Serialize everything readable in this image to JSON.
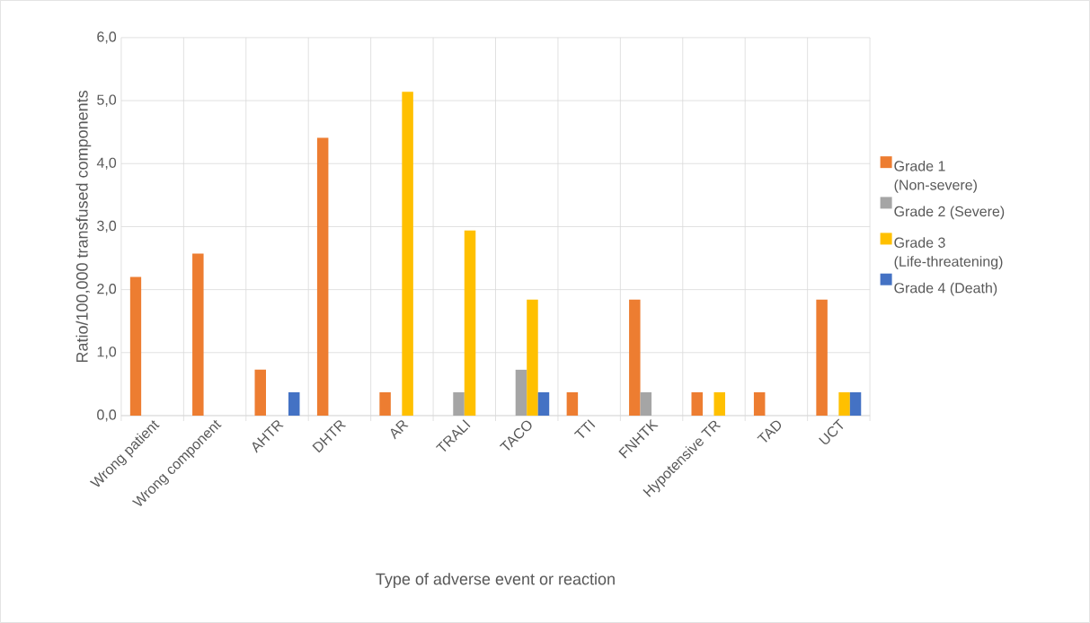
{
  "chart_data": {
    "type": "bar",
    "xlabel": "Type of adverse event or reaction",
    "ylabel": "Ratio/100,000  transfused components",
    "categories": [
      "Wrong patient",
      "Wrong component",
      "AHTR",
      "DHTR",
      "AR",
      "TRALI",
      "TACO",
      "TTI",
      "FNHTK",
      "Hypotensive TR",
      "TAD",
      "UCT"
    ],
    "series": [
      {
        "name": "Grade 1 (Non-severe)",
        "color": "#ed7d31",
        "values": [
          2.2,
          2.57,
          0.73,
          4.41,
          0.37,
          null,
          null,
          0.37,
          1.84,
          0.37,
          0.37,
          1.84
        ]
      },
      {
        "name": "Grade 2 (Severe)",
        "color": "#a5a5a5",
        "values": [
          null,
          null,
          null,
          null,
          null,
          0.37,
          0.73,
          null,
          0.37,
          null,
          null,
          null
        ]
      },
      {
        "name": "Grade 3 (Life-threatening)",
        "color": "#ffc000",
        "values": [
          null,
          null,
          null,
          null,
          5.14,
          2.94,
          1.84,
          null,
          null,
          0.37,
          null,
          0.37
        ]
      },
      {
        "name": "Grade 4 (Death)",
        "color": "#4472c4",
        "values": [
          null,
          null,
          0.37,
          null,
          null,
          null,
          0.37,
          null,
          null,
          null,
          null,
          0.37
        ]
      }
    ],
    "ylim": [
      0,
      6
    ],
    "yticks": [
      {
        "value": 0,
        "label": "0,0"
      },
      {
        "value": 1,
        "label": "1,0"
      },
      {
        "value": 2,
        "label": "2,0"
      },
      {
        "value": 3,
        "label": "3,0"
      },
      {
        "value": 4,
        "label": "4,0"
      },
      {
        "value": 5,
        "label": "5,0"
      },
      {
        "value": 6,
        "label": "6,0"
      }
    ],
    "grid": true,
    "legend": "right"
  }
}
